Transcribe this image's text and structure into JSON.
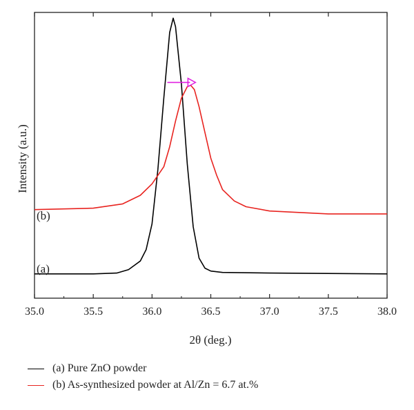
{
  "chart_data": {
    "type": "line",
    "title": "",
    "xlabel": "2θ (deg.)",
    "ylabel": "Intensity (a.u.)",
    "xlim": [
      35.0,
      38.0
    ],
    "ylim": [
      0,
      1
    ],
    "x_ticks": [
      "35.0",
      "35.5",
      "36.0",
      "36.5",
      "37.0",
      "37.5",
      "38.0"
    ],
    "y_ticks_shown": false,
    "grid": false,
    "legend_position": "bottom",
    "series": [
      {
        "name": "(a) Pure ZnO powder",
        "label": "(a)",
        "color": "#000000",
        "x": [
          35.0,
          35.5,
          35.7,
          35.8,
          35.9,
          35.95,
          36.0,
          36.05,
          36.1,
          36.15,
          36.18,
          36.2,
          36.25,
          36.3,
          36.35,
          36.4,
          36.45,
          36.5,
          36.6,
          37.0,
          38.0
        ],
        "y": [
          0.085,
          0.085,
          0.088,
          0.1,
          0.13,
          0.17,
          0.26,
          0.45,
          0.7,
          0.93,
          0.98,
          0.95,
          0.75,
          0.47,
          0.25,
          0.14,
          0.105,
          0.095,
          0.09,
          0.088,
          0.085
        ]
      },
      {
        "name": "(b) As-synthesized powder at Al/Zn = 6.7 at.%",
        "label": "(b)",
        "color": "#e8231f",
        "x": [
          35.0,
          35.5,
          35.75,
          35.9,
          36.0,
          36.1,
          36.15,
          36.2,
          36.25,
          36.3,
          36.33,
          36.36,
          36.4,
          36.45,
          36.5,
          36.55,
          36.6,
          36.7,
          36.8,
          37.0,
          37.5,
          38.0
        ],
        "y": [
          0.31,
          0.315,
          0.33,
          0.36,
          0.4,
          0.46,
          0.53,
          0.62,
          0.7,
          0.74,
          0.745,
          0.73,
          0.67,
          0.58,
          0.49,
          0.43,
          0.38,
          0.34,
          0.32,
          0.305,
          0.295,
          0.295
        ]
      }
    ],
    "annotations": [
      {
        "type": "arrow",
        "color": "#e020e0",
        "x_from": 36.13,
        "x_to": 36.37,
        "y": 0.755
      }
    ]
  }
}
